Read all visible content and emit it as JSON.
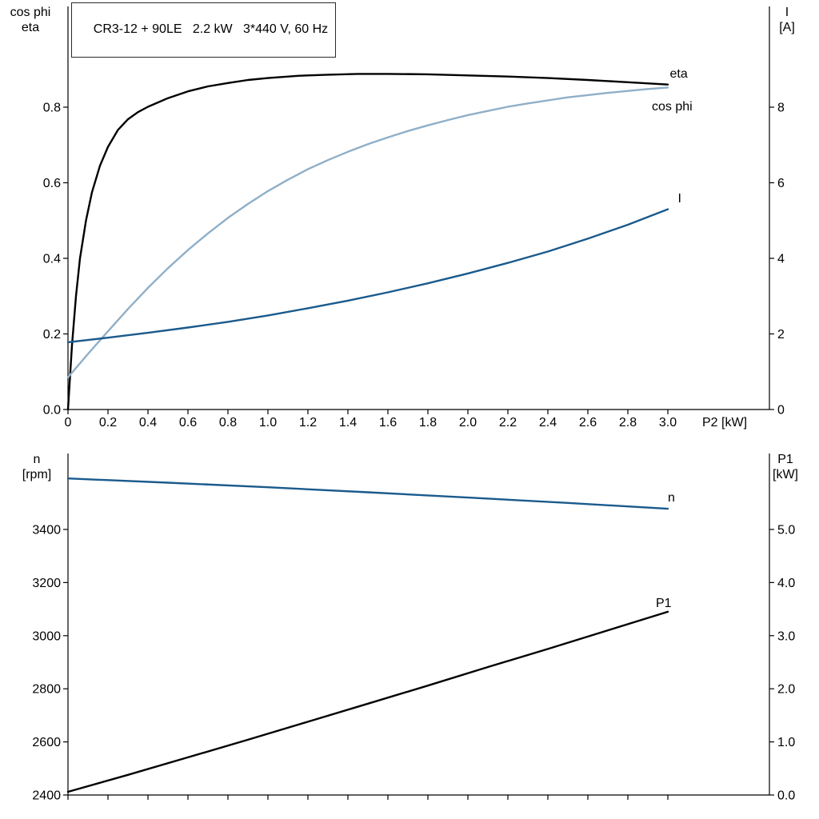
{
  "title_box": {
    "text": "CR3-12 + 90LE   2.2 kW   3*440 V, 60 Hz"
  },
  "colors": {
    "black": "#000000",
    "dark_blue": "#1a5a8c",
    "light_blue": "#8fafc8"
  },
  "chart_data": [
    {
      "id": "top",
      "type": "line",
      "x_axis": {
        "label": "P2 [kW]",
        "lim": [
          0,
          3.508
        ],
        "ticks": [
          {
            "v": 0,
            "label": "0"
          },
          {
            "v": 0.2,
            "label": "0.2"
          },
          {
            "v": 0.4,
            "label": "0.4"
          },
          {
            "v": 0.6,
            "label": "0.6"
          },
          {
            "v": 0.8,
            "label": "0.8"
          },
          {
            "v": 1.0,
            "label": "1.0"
          },
          {
            "v": 1.2,
            "label": "1.2"
          },
          {
            "v": 1.4,
            "label": "1.4"
          },
          {
            "v": 1.6,
            "label": "1.6"
          },
          {
            "v": 1.8,
            "label": "1.8"
          },
          {
            "v": 2.0,
            "label": "2.0"
          },
          {
            "v": 2.2,
            "label": "2.2"
          },
          {
            "v": 2.4,
            "label": "2.4"
          },
          {
            "v": 2.6,
            "label": "2.6"
          },
          {
            "v": 2.8,
            "label": "2.8"
          },
          {
            "v": 3.0,
            "label": "3.0"
          }
        ]
      },
      "left_axis": {
        "title_lines": [
          "cos phi",
          "eta"
        ],
        "lim": [
          0,
          1.0667
        ],
        "ticks": [
          {
            "v": 0.0,
            "label": "0.0"
          },
          {
            "v": 0.2,
            "label": "0.2"
          },
          {
            "v": 0.4,
            "label": "0.4"
          },
          {
            "v": 0.6,
            "label": "0.6"
          },
          {
            "v": 0.8,
            "label": "0.8"
          }
        ]
      },
      "right_axis": {
        "title_lines": [
          "I",
          "[A]"
        ],
        "lim": [
          0,
          10.667
        ],
        "ticks": [
          {
            "v": 0,
            "label": "0"
          },
          {
            "v": 2,
            "label": "2"
          },
          {
            "v": 4,
            "label": "4"
          },
          {
            "v": 6,
            "label": "6"
          },
          {
            "v": 8,
            "label": "8"
          }
        ]
      },
      "series": [
        {
          "name": "eta",
          "axis": "left",
          "color_key": "black",
          "label": "eta",
          "label_pos": [
            3.01,
            0.878
          ],
          "points": [
            [
              0,
              0
            ],
            [
              0.02,
              0.17
            ],
            [
              0.04,
              0.3
            ],
            [
              0.06,
              0.4
            ],
            [
              0.09,
              0.5
            ],
            [
              0.12,
              0.575
            ],
            [
              0.16,
              0.645
            ],
            [
              0.2,
              0.695
            ],
            [
              0.25,
              0.74
            ],
            [
              0.3,
              0.768
            ],
            [
              0.35,
              0.787
            ],
            [
              0.4,
              0.801
            ],
            [
              0.5,
              0.824
            ],
            [
              0.6,
              0.842
            ],
            [
              0.7,
              0.855
            ],
            [
              0.8,
              0.864
            ],
            [
              0.9,
              0.872
            ],
            [
              1.0,
              0.877
            ],
            [
              1.15,
              0.883
            ],
            [
              1.3,
              0.886
            ],
            [
              1.45,
              0.888
            ],
            [
              1.6,
              0.888
            ],
            [
              1.8,
              0.887
            ],
            [
              2.0,
              0.884
            ],
            [
              2.2,
              0.881
            ],
            [
              2.4,
              0.877
            ],
            [
              2.6,
              0.872
            ],
            [
              2.8,
              0.866
            ],
            [
              3.0,
              0.86
            ]
          ]
        },
        {
          "name": "cos phi",
          "axis": "left",
          "color_key": "light_blue",
          "label": "cos phi",
          "label_pos": [
            2.92,
            0.792
          ],
          "points": [
            [
              0,
              0.085
            ],
            [
              0.1,
              0.147
            ],
            [
              0.2,
              0.207
            ],
            [
              0.3,
              0.266
            ],
            [
              0.4,
              0.322
            ],
            [
              0.5,
              0.374
            ],
            [
              0.6,
              0.422
            ],
            [
              0.7,
              0.466
            ],
            [
              0.8,
              0.507
            ],
            [
              0.9,
              0.544
            ],
            [
              1.0,
              0.578
            ],
            [
              1.1,
              0.608
            ],
            [
              1.2,
              0.636
            ],
            [
              1.3,
              0.66
            ],
            [
              1.4,
              0.682
            ],
            [
              1.5,
              0.702
            ],
            [
              1.6,
              0.72
            ],
            [
              1.7,
              0.737
            ],
            [
              1.8,
              0.752
            ],
            [
              1.9,
              0.766
            ],
            [
              2.0,
              0.779
            ],
            [
              2.1,
              0.79
            ],
            [
              2.2,
              0.801
            ],
            [
              2.3,
              0.81
            ],
            [
              2.4,
              0.818
            ],
            [
              2.5,
              0.826
            ],
            [
              2.6,
              0.832
            ],
            [
              2.7,
              0.838
            ],
            [
              2.8,
              0.843
            ],
            [
              2.9,
              0.848
            ],
            [
              3.0,
              0.852
            ]
          ]
        },
        {
          "name": "I",
          "axis": "right",
          "color_key": "dark_blue",
          "label": "I",
          "label_pos": [
            3.05,
            5.48
          ],
          "points": [
            [
              0,
              1.78
            ],
            [
              0.2,
              1.9
            ],
            [
              0.4,
              2.03
            ],
            [
              0.6,
              2.17
            ],
            [
              0.8,
              2.32
            ],
            [
              1.0,
              2.49
            ],
            [
              1.2,
              2.68
            ],
            [
              1.4,
              2.88
            ],
            [
              1.6,
              3.1
            ],
            [
              1.8,
              3.34
            ],
            [
              2.0,
              3.6
            ],
            [
              2.2,
              3.88
            ],
            [
              2.4,
              4.18
            ],
            [
              2.6,
              4.52
            ],
            [
              2.8,
              4.89
            ],
            [
              3.0,
              5.3
            ]
          ]
        }
      ]
    },
    {
      "id": "bottom",
      "type": "line",
      "x_axis": {
        "label": "",
        "lim": [
          0,
          3.508
        ],
        "ticks": [
          {
            "v": 0,
            "label": ""
          },
          {
            "v": 0.2,
            "label": ""
          },
          {
            "v": 0.4,
            "label": ""
          },
          {
            "v": 0.6,
            "label": ""
          },
          {
            "v": 0.8,
            "label": ""
          },
          {
            "v": 1.0,
            "label": ""
          },
          {
            "v": 1.2,
            "label": ""
          },
          {
            "v": 1.4,
            "label": ""
          },
          {
            "v": 1.6,
            "label": ""
          },
          {
            "v": 1.8,
            "label": ""
          },
          {
            "v": 2.0,
            "label": ""
          },
          {
            "v": 2.2,
            "label": ""
          },
          {
            "v": 2.4,
            "label": ""
          },
          {
            "v": 2.6,
            "label": ""
          },
          {
            "v": 2.8,
            "label": ""
          },
          {
            "v": 3.0,
            "label": ""
          }
        ]
      },
      "left_axis": {
        "title_lines": [
          "n",
          "[rpm]"
        ],
        "lim": [
          2400,
          3686
        ],
        "ticks": [
          {
            "v": 2400,
            "label": "2400"
          },
          {
            "v": 2600,
            "label": "2600"
          },
          {
            "v": 2800,
            "label": "2800"
          },
          {
            "v": 3000,
            "label": "3000"
          },
          {
            "v": 3200,
            "label": "3200"
          },
          {
            "v": 3400,
            "label": "3400"
          }
        ]
      },
      "right_axis": {
        "title_lines": [
          "P1",
          "[kW]"
        ],
        "lim": [
          0,
          6.43
        ],
        "ticks": [
          {
            "v": 0,
            "label": "0.0"
          },
          {
            "v": 1,
            "label": "1.0"
          },
          {
            "v": 2,
            "label": "2.0"
          },
          {
            "v": 3,
            "label": "3.0"
          },
          {
            "v": 4,
            "label": "4.0"
          },
          {
            "v": 5,
            "label": "5.0"
          }
        ]
      },
      "series": [
        {
          "name": "n",
          "axis": "left",
          "color_key": "dark_blue",
          "label": "n",
          "label_pos": [
            3.0,
            3505
          ],
          "points": [
            [
              0,
              3592
            ],
            [
              0.5,
              3576
            ],
            [
              1.0,
              3559
            ],
            [
              1.5,
              3540
            ],
            [
              2.0,
              3520
            ],
            [
              2.5,
              3500
            ],
            [
              3.0,
              3478
            ]
          ]
        },
        {
          "name": "P1",
          "axis": "right",
          "color_key": "black",
          "label": "P1",
          "label_pos": [
            2.94,
            3.54
          ],
          "points": [
            [
              0,
              0.06
            ],
            [
              0.3,
              0.38
            ],
            [
              0.6,
              0.71
            ],
            [
              0.9,
              1.04
            ],
            [
              1.2,
              1.38
            ],
            [
              1.5,
              1.72
            ],
            [
              1.8,
              2.06
            ],
            [
              2.1,
              2.41
            ],
            [
              2.4,
              2.75
            ],
            [
              2.7,
              3.1
            ],
            [
              3.0,
              3.45
            ]
          ]
        }
      ]
    }
  ]
}
